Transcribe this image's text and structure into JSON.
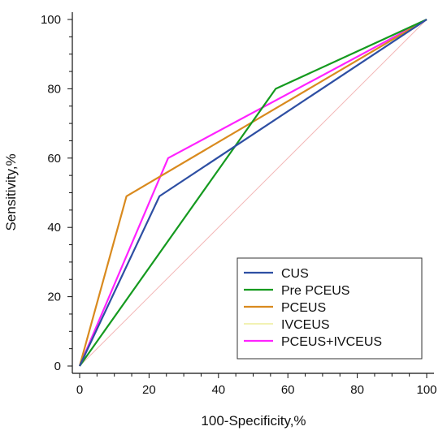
{
  "chart_data": {
    "type": "line",
    "xlabel": "100-Specificity,%",
    "ylabel": "Sensitivity,%",
    "xlim": [
      0,
      100
    ],
    "ylim": [
      0,
      100
    ],
    "xticks": [
      0,
      20,
      40,
      60,
      80,
      100
    ],
    "yticks": [
      0,
      20,
      40,
      60,
      80,
      100
    ],
    "grid": false,
    "legend_position": "bottom-right",
    "reference_line": {
      "points": [
        [
          0,
          0
        ],
        [
          100,
          100
        ]
      ],
      "color": "#f4b8b8"
    },
    "series": [
      {
        "name": "CUS",
        "color": "#2e4fa3",
        "points": [
          [
            0,
            0
          ],
          [
            23,
            49
          ],
          [
            100,
            100
          ]
        ]
      },
      {
        "name": "Pre PCEUS",
        "color": "#159a1f",
        "points": [
          [
            0,
            0
          ],
          [
            56.5,
            80
          ],
          [
            100,
            100
          ]
        ]
      },
      {
        "name": "PCEUS",
        "color": "#d98a1e",
        "points": [
          [
            0,
            0
          ],
          [
            13.5,
            49
          ],
          [
            100,
            100
          ]
        ]
      },
      {
        "name": "IVCEUS",
        "color": "#eaea88",
        "points": [
          [
            0,
            0
          ],
          [
            23,
            49
          ],
          [
            100,
            100
          ]
        ]
      },
      {
        "name": "PCEUS+IVCEUS",
        "color": "#ff22ff",
        "points": [
          [
            0,
            0
          ],
          [
            25.5,
            60
          ],
          [
            100,
            100
          ]
        ]
      }
    ]
  }
}
